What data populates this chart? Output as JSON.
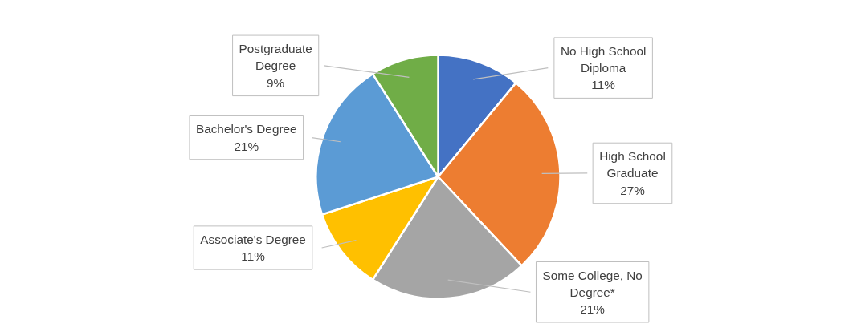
{
  "chart_data": {
    "type": "pie",
    "categories": [
      "No High School Diploma",
      "High School Graduate",
      "Some College, No Degree*",
      "Associate's Degree",
      "Bachelor's Degree",
      "Postgraduate Degree"
    ],
    "values": [
      11,
      27,
      21,
      11,
      21,
      9
    ],
    "colors": [
      "#4472c4",
      "#ed7d31",
      "#a5a5a5",
      "#ffc000",
      "#5b9bd5",
      "#70ad47"
    ],
    "value_labels": [
      "11%",
      "27%",
      "21%",
      "11%",
      "21%",
      "9%"
    ]
  }
}
